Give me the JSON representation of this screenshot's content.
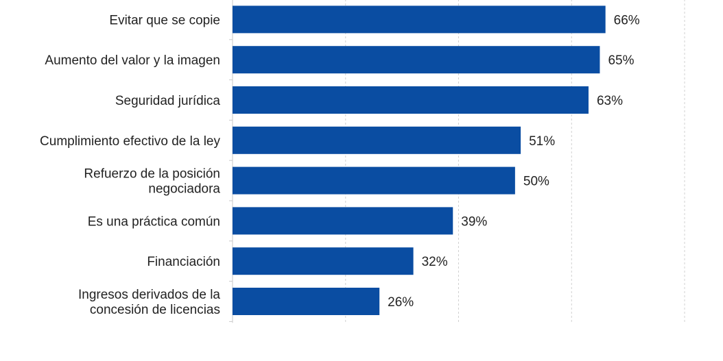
{
  "chart_data": {
    "type": "bar",
    "orientation": "horizontal",
    "categories": [
      [
        "Evitar que se copie"
      ],
      [
        "Aumento del valor y la imagen"
      ],
      [
        "Seguridad jurídica"
      ],
      [
        "Cumplimiento efectivo de la ley"
      ],
      [
        "Refuerzo de la posición",
        "negociadora"
      ],
      [
        "Es una práctica común"
      ],
      [
        "Financiación"
      ],
      [
        "Ingresos derivados de la",
        "concesión de licencias"
      ]
    ],
    "values": [
      66,
      65,
      63,
      51,
      50,
      39,
      32,
      26
    ],
    "data_labels": [
      "66%",
      "65%",
      "63%",
      "51%",
      "50%",
      "39%",
      "32%",
      "26%"
    ],
    "xlim": [
      0,
      80
    ],
    "grid": "vertical dashed every 20",
    "bar_color": "#0a4da2",
    "grid_color": "#d0d0d0",
    "title": "",
    "xlabel": "",
    "ylabel": ""
  }
}
